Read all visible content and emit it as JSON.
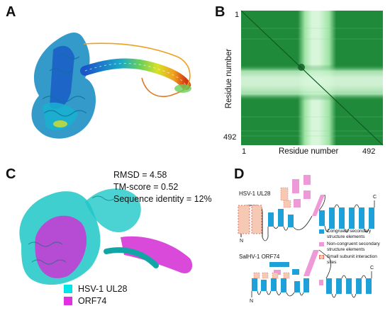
{
  "panels": {
    "a": {
      "letter": "A"
    },
    "b": {
      "letter": "B",
      "axis_label_x": "Residue number",
      "axis_label_y": "Residue number",
      "tick_start": "1",
      "tick_end": "492"
    },
    "c": {
      "letter": "C",
      "stats": [
        "RMSD = 4.58",
        "TM-score = 0.52",
        "Sequence identity = 12%"
      ],
      "legend": [
        {
          "label": "HSV-1 UL28",
          "color": "#00e5e5"
        },
        {
          "label": "ORF74",
          "color": "#e030e0"
        }
      ]
    },
    "d": {
      "letter": "D",
      "topology_1_label": "HSV-1 UL28",
      "topology_2_label": "SalHV-1 ORF74",
      "n_term": "N",
      "c_term": "C",
      "legend": [
        {
          "label": "Congruent secondary structure elements",
          "color": "#1ea0d8"
        },
        {
          "label": "Non-congruent secondary structure elements",
          "color": "#ee9ad8"
        },
        {
          "label": "Small subunit interaction sites",
          "color": "#f5c9b4"
        }
      ]
    }
  },
  "colors": {
    "matrix_dark": "#1f8a3a",
    "matrix_light": "#c8f0cc",
    "congruent": "#1ea0d8",
    "noncongruent": "#ee9ad8",
    "interaction": "#f5c9b4"
  }
}
